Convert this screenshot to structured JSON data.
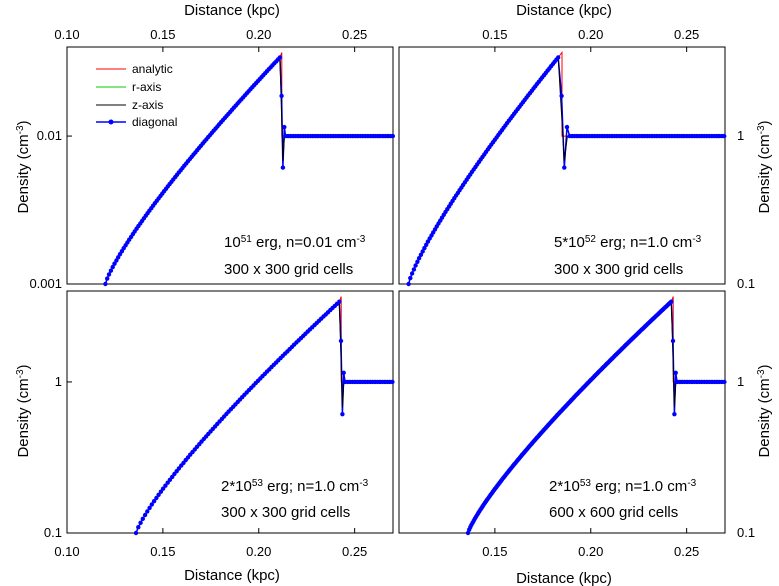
{
  "colors": {
    "analytic": "#ff0000",
    "r_axis": "#00cc00",
    "z_axis": "#000000",
    "diagonal": "#0000ff"
  },
  "legend": [
    "analytic",
    "r-axis",
    "z-axis",
    "diagonal"
  ],
  "chart_data": [
    {
      "type": "line",
      "panel": "top-left",
      "xlabel_top": "Distance (kpc)",
      "ylabel": "Density (cm-3)",
      "xlim": [
        0.1,
        0.27
      ],
      "ylim": [
        0.001,
        0.04
      ],
      "yscale": "log",
      "x_ticks": [
        "0.10",
        "0.15",
        "0.20",
        "0.25"
      ],
      "y_ticks": [
        "0.001",
        "0.01"
      ],
      "x0": 0.12,
      "y0": 0.001,
      "peak_x": 0.211,
      "peak_y": 0.034,
      "jump_x": 0.212,
      "ambient": 0.01,
      "annotation": [
        "10^51 erg, n=0.01 cm^-3",
        "300 x 300 grid cells"
      ],
      "series": [
        {
          "name": "analytic",
          "style": "step"
        },
        {
          "name": "r-axis",
          "style": "line"
        },
        {
          "name": "z-axis",
          "style": "line"
        },
        {
          "name": "diagonal",
          "style": "markers",
          "points": 95
        }
      ],
      "legend_location": "top-left"
    },
    {
      "type": "line",
      "panel": "top-right",
      "xlabel_top": "Distance (kpc)",
      "ylabel": "Density (cm-3)",
      "xlim": [
        0.1,
        0.27
      ],
      "ylim": [
        0.1,
        4.0
      ],
      "yscale": "log",
      "x_ticks": [
        "0.15",
        "0.20",
        "0.25"
      ],
      "y_ticks": [
        "0.1",
        "1"
      ],
      "x0": 0.105,
      "y0": 0.1,
      "peak_x": 0.183,
      "peak_y": 3.4,
      "jump_x": 0.185,
      "ambient": 1.0,
      "annotation": [
        "5*10^52 erg; n=1.0 cm^-3",
        "300 x 300 grid cells"
      ],
      "series": [
        {
          "name": "analytic",
          "style": "step"
        },
        {
          "name": "diagonal",
          "style": "markers",
          "points": 85
        }
      ]
    },
    {
      "type": "line",
      "panel": "bottom-left",
      "xlabel": "Distance (kpc)",
      "ylabel": "Density (cm-3)",
      "xlim": [
        0.1,
        0.27
      ],
      "ylim": [
        0.1,
        4.0
      ],
      "yscale": "log",
      "x_ticks": [
        "0.10",
        "0.15",
        "0.20",
        "0.25"
      ],
      "y_ticks": [
        "0.1",
        "1"
      ],
      "x0": 0.136,
      "y0": 0.1,
      "peak_x": 0.242,
      "peak_y": 3.4,
      "jump_x": 0.243,
      "ambient": 1.0,
      "annotation": [
        "2*10^53 erg; n=1.0 cm^-3",
        "300 x 300 grid cells"
      ],
      "series": [
        {
          "name": "analytic",
          "style": "step"
        },
        {
          "name": "diagonal",
          "style": "markers",
          "points": 90
        }
      ]
    },
    {
      "type": "line",
      "panel": "bottom-right",
      "xlabel": "Distance (kpc)",
      "ylabel": "Density (cm-3)",
      "xlim": [
        0.1,
        0.27
      ],
      "ylim": [
        0.1,
        4.0
      ],
      "yscale": "log",
      "x_ticks": [
        "0.15",
        "0.20",
        "0.25"
      ],
      "y_ticks": [
        "0.1",
        "1"
      ],
      "x0": 0.136,
      "y0": 0.1,
      "peak_x": 0.242,
      "peak_y": 3.4,
      "jump_x": 0.243,
      "ambient": 1.0,
      "annotation": [
        "2*10^53 erg; n=1.0 cm^-3",
        "600 x 600 grid cells"
      ],
      "series": [
        {
          "name": "analytic",
          "style": "step"
        },
        {
          "name": "diagonal",
          "style": "markers",
          "points": 180
        }
      ]
    }
  ],
  "labels": {
    "distance": "Distance (kpc)",
    "density": "Density (cm",
    "density_exp": "-3",
    "density_close": ")",
    "ann_tl_base": "10",
    "ann_tl_exp": "51",
    "ann_tl_rest": " erg, n=0.01 cm",
    "ann_tr_base": "5*10",
    "ann_tr_exp": "52",
    "ann_tr_rest": " erg; n=1.0 cm",
    "ann_bl_base": "2*10",
    "ann_bl_exp": "53",
    "ann_bl_rest": " erg; n=1.0 cm",
    "ann_br_base": "2*10",
    "ann_br_exp": "53",
    "ann_br_rest": " erg; n=1.0 cm",
    "unit_exp": "-3",
    "grid_300": "300 x 300 grid cells",
    "grid_600": "600 x 600 grid cells"
  }
}
